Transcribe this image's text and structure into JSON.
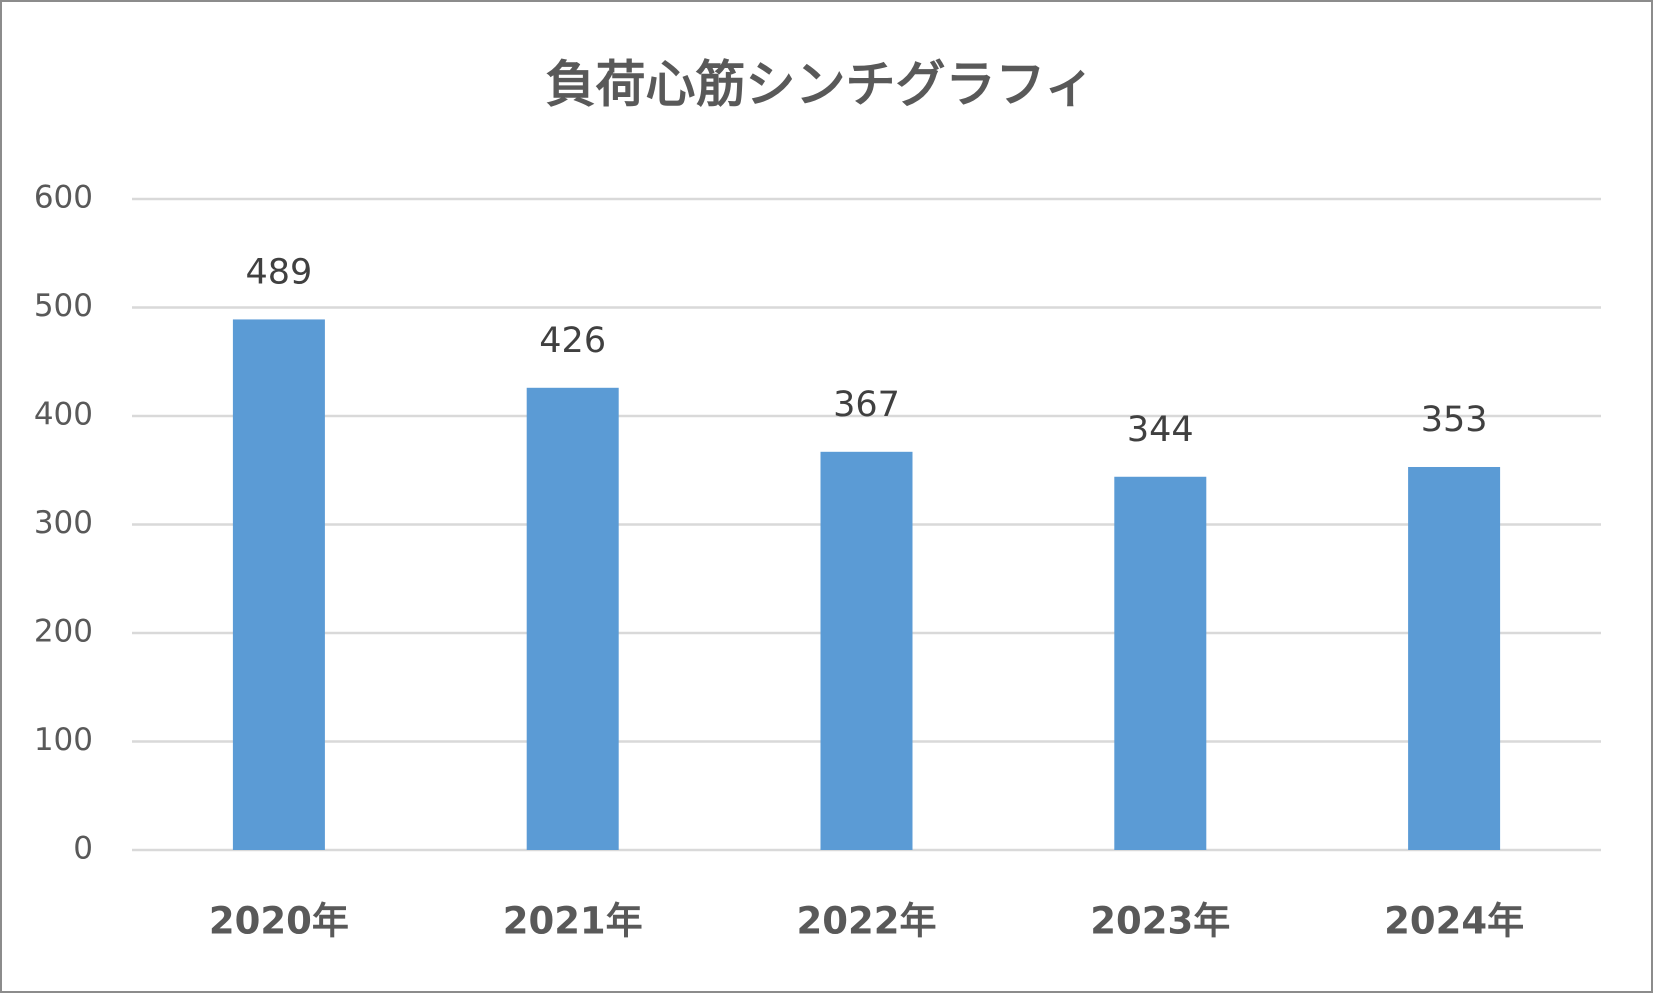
{
  "chart_data": {
    "type": "bar",
    "title": "負荷心筋シンチグラフィ",
    "categories": [
      "2020年",
      "2021年",
      "2022年",
      "2023年",
      "2024年"
    ],
    "values": [
      489,
      426,
      367,
      344,
      353
    ],
    "color": "#5b9bd5",
    "ylim": [
      0,
      600
    ],
    "yticks": [
      0,
      100,
      200,
      300,
      400,
      500,
      600
    ],
    "grid": true
  }
}
